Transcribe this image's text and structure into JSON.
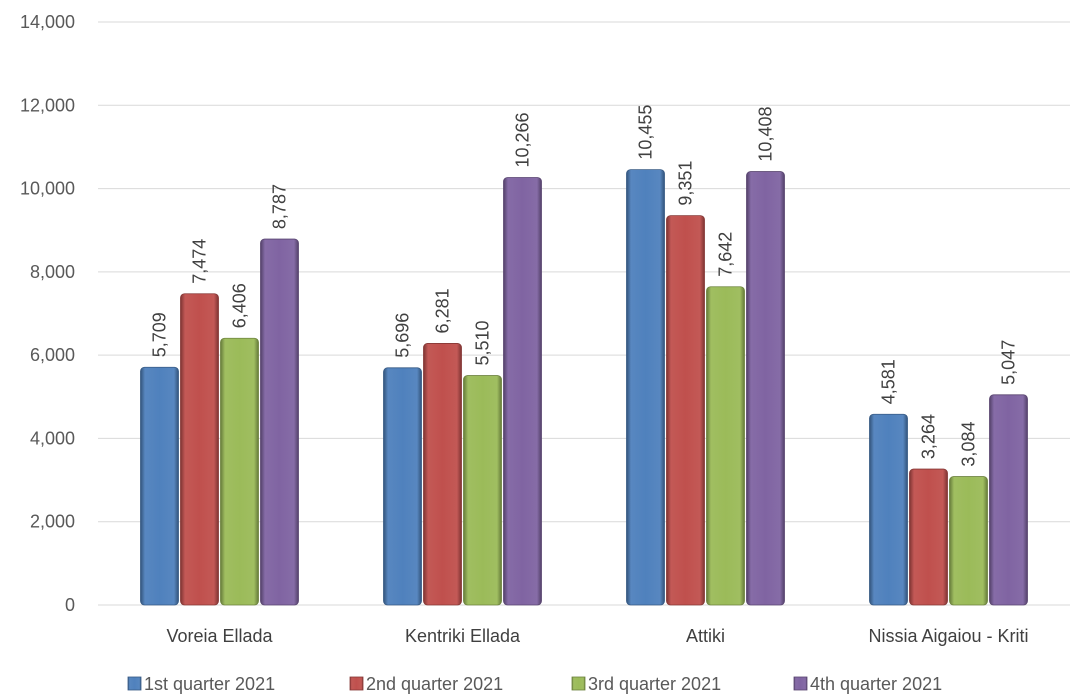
{
  "chart_data": {
    "type": "bar",
    "title": "",
    "xlabel": "",
    "ylabel": "",
    "ylim": [
      0,
      14000
    ],
    "y_ticks": [
      0,
      2000,
      4000,
      6000,
      8000,
      10000,
      12000,
      14000
    ],
    "y_tick_labels": [
      "0",
      "2,000",
      "4,000",
      "6,000",
      "8,000",
      "10,000",
      "12,000",
      "14,000"
    ],
    "grid": true,
    "legend_position": "bottom",
    "categories": [
      "Voreia Ellada",
      "Kentriki Ellada",
      "Attiki",
      "Nissia Aigaiou - Kriti"
    ],
    "series": [
      {
        "name": "1st quarter 2021",
        "color": "#4f81bd",
        "values": [
          5709,
          5696,
          10455,
          4581
        ],
        "labels": [
          "5,709",
          "5,696",
          "10,455",
          "4,581"
        ]
      },
      {
        "name": "2nd quarter 2021",
        "color": "#c0504d",
        "values": [
          7474,
          6281,
          9351,
          3264
        ],
        "labels": [
          "7,474",
          "6,281",
          "9,351",
          "3,264"
        ]
      },
      {
        "name": "3rd quarter 2021",
        "color": "#9bbb59",
        "values": [
          6406,
          5510,
          7642,
          3084
        ],
        "labels": [
          "6,406",
          "5,510",
          "7,642",
          "3,084"
        ]
      },
      {
        "name": "4th quarter 2021",
        "color": "#8064a2",
        "values": [
          8787,
          10266,
          10408,
          5047
        ],
        "labels": [
          "8,787",
          "10,266",
          "10,408",
          "5,047"
        ]
      }
    ]
  }
}
